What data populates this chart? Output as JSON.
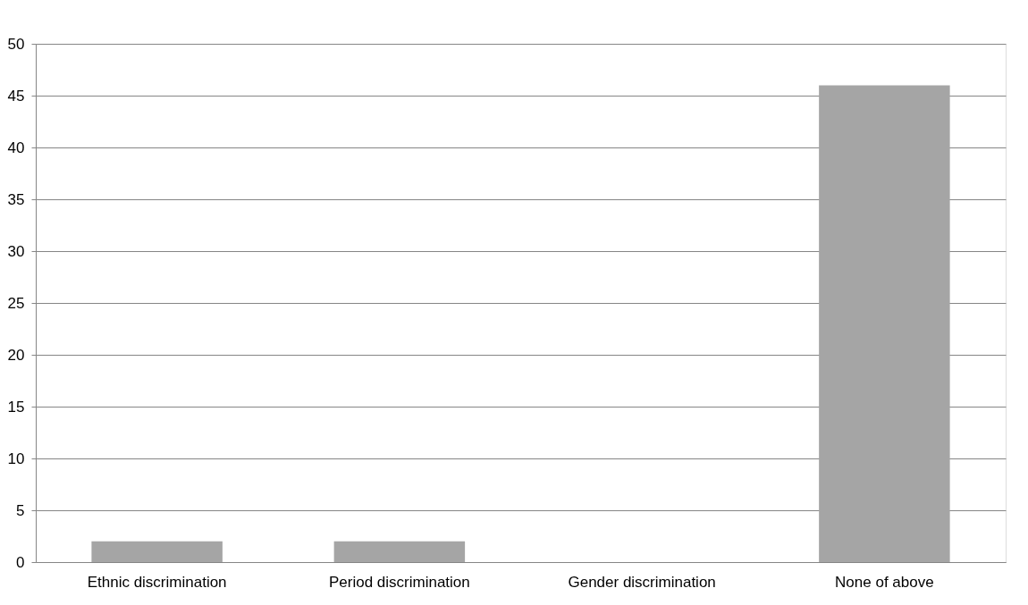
{
  "chart_data": {
    "type": "bar",
    "categories": [
      "Ethnic discrimination",
      "Period discrimination",
      "Gender discrimination",
      "None of above"
    ],
    "values": [
      2,
      2,
      0,
      46
    ],
    "color": "#a5a5a5",
    "ylim": [
      0,
      50
    ],
    "yticks": [
      0,
      5,
      10,
      15,
      20,
      25,
      30,
      35,
      40,
      45,
      50
    ],
    "grid": "y"
  }
}
